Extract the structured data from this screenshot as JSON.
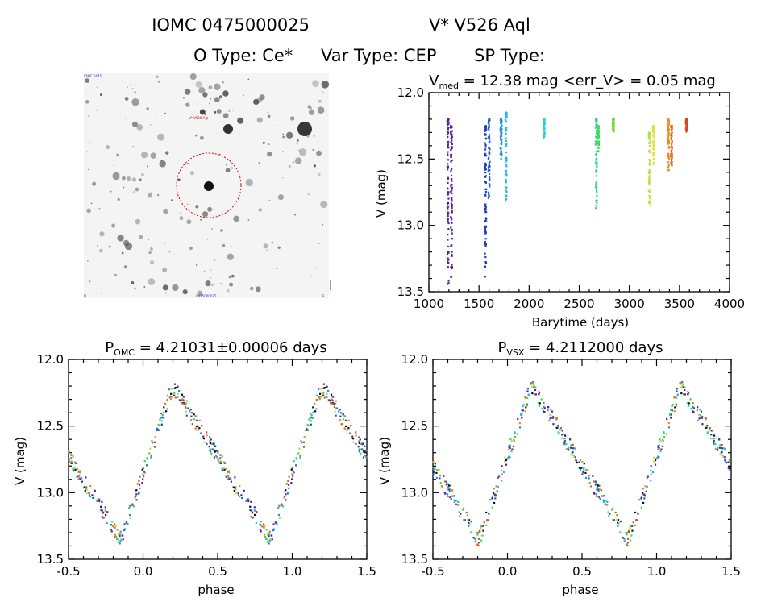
{
  "header": {
    "line1_id": "IOMC 0475000025",
    "line1_name": "V* V526 Aql",
    "otype_label": "O Type: Ce*",
    "vartype_label": "Var Type: CEP",
    "sptype_label": "SP Type:"
  },
  "image_panel": {
    "target_label": "V* V526 Aql",
    "corner_tl": "IOMC 0475",
    "corner_bl": "N",
    "corner_bm": "0475000025",
    "corner_br": "E",
    "accent_color": "#cc0000"
  },
  "chart_data": [
    {
      "type": "scatter",
      "title_main": "V",
      "title_sub": "med",
      "title_rest": " = 12.38 mag <err_V> = 0.05 mag",
      "xlabel": "Barytime (days)",
      "ylabel": "V (mag)",
      "xlim": [
        1000,
        4000
      ],
      "ylim": [
        13.5,
        12.0
      ],
      "xticks": [
        "1000",
        "1500",
        "2000",
        "2500",
        "3000",
        "3500",
        "4000"
      ],
      "yticks": [
        "12.0",
        "12.5",
        "13.0",
        "13.5"
      ],
      "clusters": [
        {
          "x": 1190,
          "v_min": 12.2,
          "v_max": 13.45,
          "color": "#5a1f9e"
        },
        {
          "x": 1225,
          "v_min": 12.25,
          "v_max": 13.4,
          "color": "#4b23a8"
        },
        {
          "x": 1565,
          "v_min": 12.25,
          "v_max": 13.4,
          "color": "#1d3fb8"
        },
        {
          "x": 1600,
          "v_min": 12.2,
          "v_max": 12.8,
          "color": "#1e5fd0"
        },
        {
          "x": 1720,
          "v_min": 12.2,
          "v_max": 12.5,
          "color": "#1f8fdf"
        },
        {
          "x": 1770,
          "v_min": 12.15,
          "v_max": 12.85,
          "color": "#22b8e6"
        },
        {
          "x": 2150,
          "v_min": 12.2,
          "v_max": 12.35,
          "color": "#2ad2d8"
        },
        {
          "x": 2670,
          "v_min": 12.2,
          "v_max": 12.88,
          "color": "#2ed68a"
        },
        {
          "x": 2690,
          "v_min": 12.25,
          "v_max": 12.45,
          "color": "#40d855"
        },
        {
          "x": 2840,
          "v_min": 12.2,
          "v_max": 12.3,
          "color": "#6cdc3a"
        },
        {
          "x": 3200,
          "v_min": 12.3,
          "v_max": 12.85,
          "color": "#b8e23a"
        },
        {
          "x": 3240,
          "v_min": 12.25,
          "v_max": 12.55,
          "color": "#dce43b"
        },
        {
          "x": 3390,
          "v_min": 12.2,
          "v_max": 12.6,
          "color": "#f08a1e"
        },
        {
          "x": 3420,
          "v_min": 12.25,
          "v_max": 12.55,
          "color": "#e4661a"
        },
        {
          "x": 3570,
          "v_min": 12.2,
          "v_max": 12.3,
          "color": "#d24a18"
        }
      ]
    },
    {
      "type": "scatter",
      "title_main": "P",
      "title_sub": "OMC",
      "title_rest": " = 4.21031±0.00006 days",
      "xlabel": "phase",
      "ylabel": "V (mag)",
      "xlim": [
        -0.5,
        1.5
      ],
      "ylim": [
        13.5,
        12.0
      ],
      "xticks": [
        "-0.5",
        "0.0",
        "0.5",
        "1.0",
        "1.5"
      ],
      "yticks": [
        "12.0",
        "12.5",
        "13.0",
        "13.5"
      ],
      "phase_offset": 0.0
    },
    {
      "type": "scatter",
      "title_main": "P",
      "title_sub": "VSX",
      "title_rest": " = 4.2112000 days",
      "xlabel": "phase",
      "ylabel": "V (mag)",
      "xlim": [
        -0.5,
        1.5
      ],
      "ylim": [
        13.5,
        12.0
      ],
      "xticks": [
        "-0.5",
        "0.0",
        "0.5",
        "1.0",
        "1.5"
      ],
      "yticks": [
        "12.0",
        "12.5",
        "13.0",
        "13.5"
      ],
      "phase_offset": -0.04
    }
  ]
}
